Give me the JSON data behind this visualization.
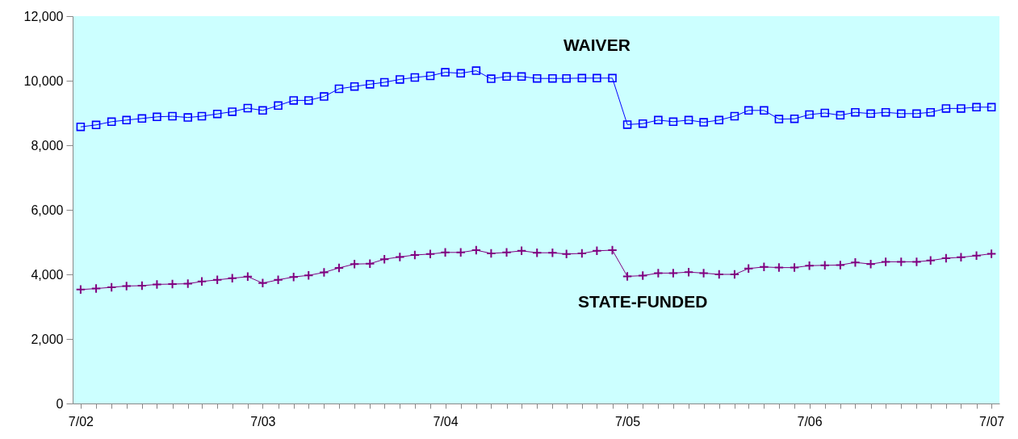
{
  "chart_data": {
    "type": "line",
    "legend": false,
    "grid": false,
    "x": [
      "2002-07",
      "2002-08",
      "2002-09",
      "2002-10",
      "2002-11",
      "2002-12",
      "2003-01",
      "2003-02",
      "2003-03",
      "2003-04",
      "2003-05",
      "2003-06",
      "2003-07",
      "2003-08",
      "2003-09",
      "2003-10",
      "2003-11",
      "2003-12",
      "2004-01",
      "2004-02",
      "2004-03",
      "2004-04",
      "2004-05",
      "2004-06",
      "2004-07",
      "2004-08",
      "2004-09",
      "2004-10",
      "2004-11",
      "2004-12",
      "2005-01",
      "2005-02",
      "2005-03",
      "2005-04",
      "2005-05",
      "2005-06",
      "2005-07",
      "2005-08",
      "2005-09",
      "2005-10",
      "2005-11",
      "2005-12",
      "2006-01",
      "2006-02",
      "2006-03",
      "2006-04",
      "2006-05",
      "2006-06",
      "2006-07",
      "2006-08",
      "2006-09",
      "2006-10",
      "2006-11",
      "2006-12",
      "2007-01",
      "2007-02",
      "2007-03",
      "2007-04",
      "2007-05",
      "2007-06",
      "2007-07"
    ],
    "xlim": [
      "2002-06-15",
      "2007-07-17"
    ],
    "xticks": [
      {
        "value": "2002-07",
        "label": "7/02"
      },
      {
        "value": "2002-08",
        "label": null
      },
      {
        "value": "2002-09",
        "label": null
      },
      {
        "value": "2002-10",
        "label": null
      },
      {
        "value": "2002-11",
        "label": null
      },
      {
        "value": "2002-12",
        "label": null
      },
      {
        "value": "2003-01",
        "label": null
      },
      {
        "value": "2003-02",
        "label": null
      },
      {
        "value": "2003-03",
        "label": null
      },
      {
        "value": "2003-04",
        "label": null
      },
      {
        "value": "2003-05",
        "label": null
      },
      {
        "value": "2003-06",
        "label": null
      },
      {
        "value": "2003-07",
        "label": "7/03"
      },
      {
        "value": "2003-08",
        "label": null
      },
      {
        "value": "2003-09",
        "label": null
      },
      {
        "value": "2003-10",
        "label": null
      },
      {
        "value": "2003-11",
        "label": null
      },
      {
        "value": "2003-12",
        "label": null
      },
      {
        "value": "2004-01",
        "label": null
      },
      {
        "value": "2004-02",
        "label": null
      },
      {
        "value": "2004-03",
        "label": null
      },
      {
        "value": "2004-04",
        "label": null
      },
      {
        "value": "2004-05",
        "label": null
      },
      {
        "value": "2004-06",
        "label": null
      },
      {
        "value": "2004-07",
        "label": "7/04"
      },
      {
        "value": "2004-08",
        "label": null
      },
      {
        "value": "2004-09",
        "label": null
      },
      {
        "value": "2004-10",
        "label": null
      },
      {
        "value": "2004-11",
        "label": null
      },
      {
        "value": "2004-12",
        "label": null
      },
      {
        "value": "2005-01",
        "label": null
      },
      {
        "value": "2005-02",
        "label": null
      },
      {
        "value": "2005-03",
        "label": null
      },
      {
        "value": "2005-04",
        "label": null
      },
      {
        "value": "2005-05",
        "label": null
      },
      {
        "value": "2005-06",
        "label": null
      },
      {
        "value": "2005-07",
        "label": "7/05"
      },
      {
        "value": "2005-08",
        "label": null
      },
      {
        "value": "2005-09",
        "label": null
      },
      {
        "value": "2005-10",
        "label": null
      },
      {
        "value": "2005-11",
        "label": null
      },
      {
        "value": "2005-12",
        "label": null
      },
      {
        "value": "2006-01",
        "label": null
      },
      {
        "value": "2006-02",
        "label": null
      },
      {
        "value": "2006-03",
        "label": null
      },
      {
        "value": "2006-04",
        "label": null
      },
      {
        "value": "2006-05",
        "label": null
      },
      {
        "value": "2006-06",
        "label": null
      },
      {
        "value": "2006-07",
        "label": "7/06"
      },
      {
        "value": "2006-08",
        "label": null
      },
      {
        "value": "2006-09",
        "label": null
      },
      {
        "value": "2006-10",
        "label": null
      },
      {
        "value": "2006-11",
        "label": null
      },
      {
        "value": "2006-12",
        "label": null
      },
      {
        "value": "2007-01",
        "label": null
      },
      {
        "value": "2007-02",
        "label": null
      },
      {
        "value": "2007-03",
        "label": null
      },
      {
        "value": "2007-04",
        "label": null
      },
      {
        "value": "2007-05",
        "label": null
      },
      {
        "value": "2007-06",
        "label": null
      },
      {
        "value": "2007-07",
        "label": "7/07"
      }
    ],
    "ylim": [
      0,
      12000
    ],
    "yticks": [
      0,
      {
        "value": 2000,
        "label": "2,000"
      },
      {
        "value": 4000,
        "label": "4,000"
      },
      {
        "value": 6000,
        "label": "6,000"
      },
      {
        "value": 8000,
        "label": "8,000"
      },
      {
        "value": 10000,
        "label": "10,000"
      },
      {
        "value": 12000,
        "label": "12,000"
      }
    ],
    "series": [
      {
        "name": "WAIVER",
        "color": "#0000ff",
        "marker": "square",
        "values": [
          8570,
          8630,
          8730,
          8780,
          8830,
          8880,
          8900,
          8860,
          8900,
          8970,
          9040,
          9150,
          9080,
          9230,
          9390,
          9390,
          9510,
          9750,
          9820,
          9890,
          9950,
          10040,
          10100,
          10150,
          10260,
          10230,
          10310,
          10060,
          10130,
          10130,
          10070,
          10070,
          10070,
          10080,
          10080,
          10080,
          8640,
          8670,
          8780,
          8730,
          8780,
          8710,
          8780,
          8900,
          9080,
          9080,
          8810,
          8820,
          8950,
          9000,
          8930,
          9020,
          8980,
          9020,
          8980,
          8980,
          9020,
          9140,
          9140,
          9180,
          9180
        ]
      },
      {
        "name": "STATE-FUNDED",
        "color": "#800080",
        "marker": "cross",
        "values": [
          3530,
          3560,
          3600,
          3640,
          3650,
          3690,
          3700,
          3710,
          3780,
          3830,
          3880,
          3930,
          3730,
          3830,
          3920,
          3970,
          4060,
          4200,
          4320,
          4330,
          4470,
          4540,
          4600,
          4630,
          4680,
          4680,
          4750,
          4650,
          4680,
          4730,
          4670,
          4670,
          4630,
          4650,
          4730,
          4750,
          3940,
          3960,
          4040,
          4040,
          4070,
          4040,
          4000,
          4000,
          4180,
          4230,
          4210,
          4210,
          4270,
          4280,
          4290,
          4370,
          4320,
          4390,
          4390,
          4390,
          4430,
          4500,
          4530,
          4580,
          4640
        ]
      }
    ]
  }
}
